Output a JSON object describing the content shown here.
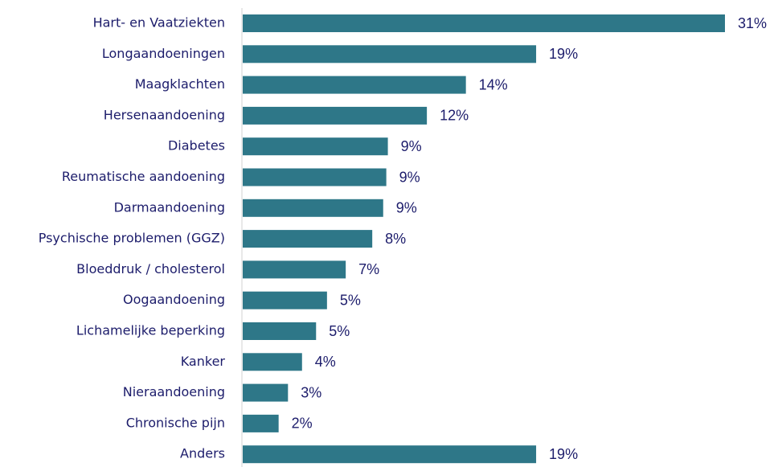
{
  "chart_data": {
    "type": "barh",
    "categories": [
      "Hart- en Vaatziekten",
      "Longaandoeningen",
      "Maagklachten",
      "Hersenaandoening",
      "Diabetes",
      "Reumatische aandoening",
      "Darmaandoening",
      "Psychische problemen (GGZ)",
      "Bloeddruk / cholesterol",
      "Oogaandoening",
      "Lichamelijke beperking",
      "Kanker",
      "Nieraandoening",
      "Chronische pijn",
      "Anders"
    ],
    "values": [
      30.9,
      18.8,
      14.3,
      11.8,
      9.3,
      9.2,
      9.0,
      8.3,
      6.6,
      5.4,
      4.7,
      3.8,
      2.9,
      2.3,
      18.8
    ],
    "value_labels": [
      "31%",
      "19%",
      "14%",
      "12%",
      "9%",
      "9%",
      "9%",
      "8%",
      "7%",
      "5%",
      "5%",
      "4%",
      "3%",
      "2%",
      "19%"
    ],
    "color": "#2e7788"
  }
}
